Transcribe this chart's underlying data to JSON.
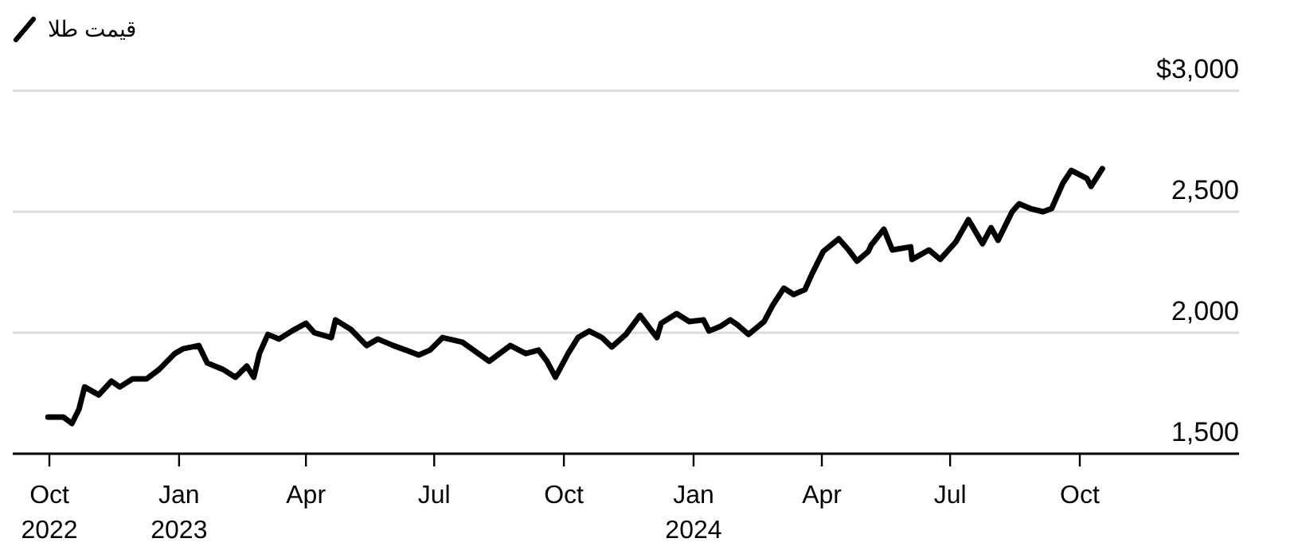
{
  "chart_data": {
    "type": "line",
    "legend": "top left",
    "grid": "y",
    "x": [
      "2022-09-30",
      "2022-10-11",
      "2022-10-17",
      "2022-10-22",
      "2022-10-26",
      "2022-11-05",
      "2022-11-14",
      "2022-11-20",
      "2022-11-29",
      "2022-12-09",
      "2022-12-18",
      "2022-12-29",
      "2023-01-04",
      "2023-01-15",
      "2023-01-21",
      "2023-02-01",
      "2023-02-10",
      "2023-02-18",
      "2023-02-23",
      "2023-02-27",
      "2023-03-05",
      "2023-03-13",
      "2023-03-22",
      "2023-04-01",
      "2023-04-07",
      "2023-04-19",
      "2023-04-22",
      "2023-05-03",
      "2023-05-14",
      "2023-05-22",
      "2023-06-02",
      "2023-06-11",
      "2023-06-20",
      "2023-06-28",
      "2023-07-07",
      "2023-07-21",
      "2023-08-09",
      "2023-08-24",
      "2023-09-04",
      "2023-09-13",
      "2023-09-19",
      "2023-09-25",
      "2023-10-04",
      "2023-10-11",
      "2023-10-19",
      "2023-10-28",
      "2023-11-04",
      "2023-11-14",
      "2023-11-24",
      "2023-12-06",
      "2023-12-09",
      "2023-12-20",
      "2023-12-29",
      "2024-01-08",
      "2024-01-12",
      "2024-01-20",
      "2024-01-27",
      "2024-02-01",
      "2024-02-09",
      "2024-02-20",
      "2024-02-26",
      "2024-03-05",
      "2024-03-12",
      "2024-03-20",
      "2024-03-25",
      "2024-04-02",
      "2024-04-13",
      "2024-04-20",
      "2024-04-26",
      "2024-05-04",
      "2024-05-06",
      "2024-05-15",
      "2024-05-21",
      "2024-06-03",
      "2024-06-04",
      "2024-06-16",
      "2024-06-24",
      "2024-07-05",
      "2024-07-14",
      "2024-07-24",
      "2024-07-30",
      "2024-08-04",
      "2024-08-14",
      "2024-08-19",
      "2024-08-27",
      "2024-09-05",
      "2024-09-11",
      "2024-09-19",
      "2024-09-25",
      "2024-10-06",
      "2024-10-09",
      "2024-10-17"
    ],
    "series": [
      {
        "name": "قیمت طلا",
        "color": "#000000",
        "values": [
          1651,
          1651,
          1625,
          1684,
          1776,
          1743,
          1800,
          1776,
          1809,
          1809,
          1849,
          1914,
          1934,
          1947,
          1875,
          1849,
          1816,
          1862,
          1816,
          1914,
          1993,
          1974,
          2007,
          2039,
          2000,
          1980,
          2053,
          2013,
          1947,
          1974,
          1947,
          1928,
          1908,
          1928,
          1980,
          1961,
          1882,
          1947,
          1914,
          1928,
          1882,
          1816,
          1914,
          1980,
          2007,
          1980,
          1941,
          1993,
          2072,
          1980,
          2039,
          2079,
          2046,
          2053,
          2007,
          2026,
          2053,
          2033,
          1993,
          2046,
          2112,
          2184,
          2158,
          2178,
          2243,
          2336,
          2388,
          2342,
          2296,
          2336,
          2362,
          2428,
          2342,
          2355,
          2303,
          2342,
          2303,
          2375,
          2467,
          2368,
          2434,
          2382,
          2500,
          2533,
          2513,
          2500,
          2513,
          2618,
          2671,
          2638,
          2605,
          2678
        ]
      }
    ],
    "xlim": [
      "2022-09-05",
      "2025-01-22"
    ],
    "xticks": [
      {
        "value": "2022-10-01",
        "label": "Oct\n2022"
      },
      {
        "value": "2023-01-01",
        "label": "Jan\n2023"
      },
      {
        "value": "2023-04-01",
        "label": "Apr"
      },
      {
        "value": "2023-07-01",
        "label": "Jul"
      },
      {
        "value": "2023-10-01",
        "label": "Oct"
      },
      {
        "value": "2024-01-01",
        "label": "Jan\n2024"
      },
      {
        "value": "2024-04-01",
        "label": "Apr"
      },
      {
        "value": "2024-07-01",
        "label": "Jul"
      },
      {
        "value": "2024-10-01",
        "label": "Oct"
      }
    ],
    "ylim": [
      1500,
      3000
    ],
    "yticks": [
      {
        "value": 1500,
        "label": "1,500"
      },
      {
        "value": 2000,
        "label": "2,000"
      },
      {
        "value": 2500,
        "label": "2,500"
      },
      {
        "value": 3000,
        "label": "$3,000"
      }
    ]
  }
}
